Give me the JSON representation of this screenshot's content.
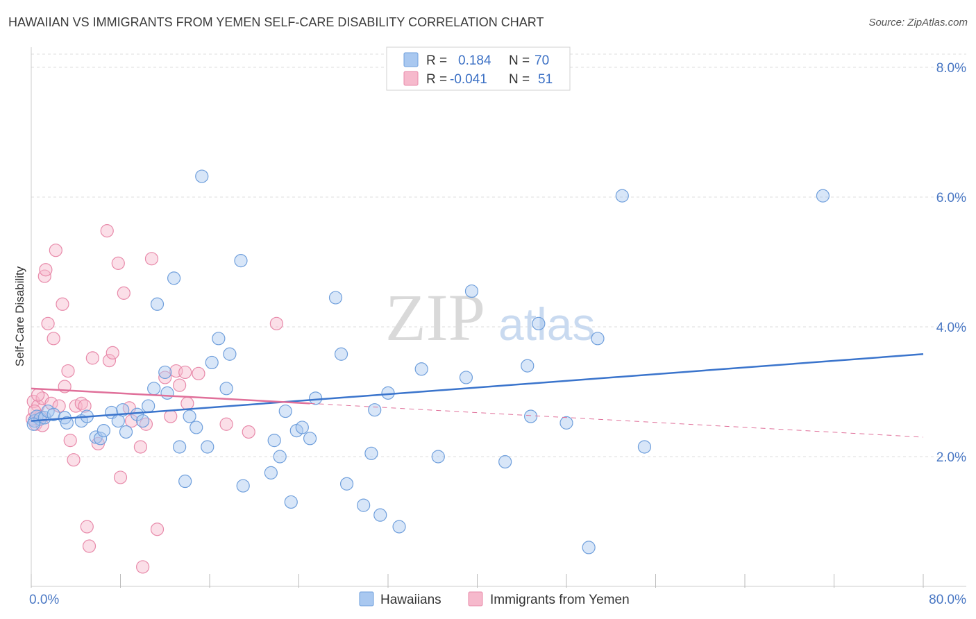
{
  "title": "HAWAIIAN VS IMMIGRANTS FROM YEMEN SELF-CARE DISABILITY CORRELATION CHART",
  "source": "Source: ZipAtlas.com",
  "watermark": {
    "zip": "ZIP",
    "atlas": "atlas"
  },
  "colors": {
    "blue_fill": "#a9c8f0",
    "blue_stroke": "#6f9fdc",
    "blue_line": "#3a74cc",
    "pink_fill": "#f6b9cc",
    "pink_stroke": "#e88aaa",
    "pink_line": "#e0709a",
    "grid": "#dcdcdc",
    "tick_text": "#4a78c4"
  },
  "legend": {
    "rows": [
      {
        "r_label": "R =",
        "r_value": "0.184",
        "n_label": "N =",
        "n_value": "70"
      },
      {
        "r_label": "R =",
        "r_value": "-0.041",
        "n_label": "N =",
        "n_value": "51"
      }
    ]
  },
  "chart_data": {
    "type": "scatter",
    "title": "HAWAIIAN VS IMMIGRANTS FROM YEMEN SELF-CARE DISABILITY CORRELATION CHART",
    "xlabel": "",
    "ylabel": "Self-Care Disability",
    "xlim": [
      0,
      80
    ],
    "ylim": [
      0,
      8.2
    ],
    "x_tick_labels": [
      "0.0%",
      "80.0%"
    ],
    "y_ticks": [
      2,
      4,
      6,
      8
    ],
    "y_tick_labels": [
      "2.0%",
      "4.0%",
      "6.0%",
      "8.0%"
    ],
    "grid": true,
    "legend_position": "top-center",
    "series": [
      {
        "name": "Hawaiians",
        "color": "#a9c8f0",
        "points": [
          [
            0.3,
            2.55
          ],
          [
            0.5,
            2.62
          ],
          [
            0.8,
            2.58
          ],
          [
            1.2,
            2.6
          ],
          [
            1.5,
            2.7
          ],
          [
            2.0,
            2.65
          ],
          [
            3.0,
            2.6
          ],
          [
            3.2,
            2.52
          ],
          [
            4.5,
            2.55
          ],
          [
            5.0,
            2.62
          ],
          [
            5.8,
            2.3
          ],
          [
            6.2,
            2.28
          ],
          [
            6.5,
            2.4
          ],
          [
            7.2,
            2.68
          ],
          [
            7.8,
            2.55
          ],
          [
            8.2,
            2.72
          ],
          [
            8.5,
            2.38
          ],
          [
            9.5,
            2.65
          ],
          [
            10.0,
            2.55
          ],
          [
            10.5,
            2.78
          ],
          [
            11.0,
            3.05
          ],
          [
            11.3,
            4.35
          ],
          [
            12.0,
            3.3
          ],
          [
            12.2,
            2.98
          ],
          [
            12.8,
            4.75
          ],
          [
            13.3,
            2.15
          ],
          [
            13.8,
            1.62
          ],
          [
            14.2,
            2.62
          ],
          [
            14.8,
            2.45
          ],
          [
            15.3,
            6.32
          ],
          [
            15.8,
            2.15
          ],
          [
            16.2,
            3.45
          ],
          [
            16.8,
            3.82
          ],
          [
            17.5,
            3.05
          ],
          [
            17.8,
            3.58
          ],
          [
            18.8,
            5.02
          ],
          [
            19.0,
            1.55
          ],
          [
            21.5,
            1.75
          ],
          [
            21.8,
            2.25
          ],
          [
            22.3,
            2.0
          ],
          [
            22.8,
            2.7
          ],
          [
            23.3,
            1.3
          ],
          [
            23.8,
            2.4
          ],
          [
            24.3,
            2.45
          ],
          [
            25.0,
            2.28
          ],
          [
            25.5,
            2.9
          ],
          [
            27.3,
            4.45
          ],
          [
            27.8,
            3.58
          ],
          [
            28.3,
            1.58
          ],
          [
            29.8,
            1.25
          ],
          [
            30.5,
            2.05
          ],
          [
            30.8,
            2.72
          ],
          [
            31.3,
            1.1
          ],
          [
            32.0,
            2.98
          ],
          [
            33.0,
            0.92
          ],
          [
            35.0,
            3.35
          ],
          [
            36.5,
            2.0
          ],
          [
            39.0,
            3.22
          ],
          [
            39.5,
            4.55
          ],
          [
            42.5,
            1.92
          ],
          [
            44.5,
            3.4
          ],
          [
            44.8,
            2.62
          ],
          [
            45.5,
            4.05
          ],
          [
            48.0,
            2.52
          ],
          [
            50.0,
            0.6
          ],
          [
            50.8,
            3.82
          ],
          [
            53.0,
            6.02
          ],
          [
            55.0,
            2.15
          ],
          [
            71.0,
            6.02
          ],
          [
            0.2,
            2.5
          ]
        ]
      },
      {
        "name": "Immigrants from Yemen",
        "color": "#f6b9cc",
        "points": [
          [
            0.2,
            2.85
          ],
          [
            0.4,
            2.5
          ],
          [
            0.6,
            2.78
          ],
          [
            0.8,
            2.62
          ],
          [
            1.0,
            2.9
          ],
          [
            1.2,
            4.78
          ],
          [
            1.3,
            4.88
          ],
          [
            1.5,
            4.05
          ],
          [
            1.8,
            2.82
          ],
          [
            2.0,
            3.82
          ],
          [
            2.2,
            5.18
          ],
          [
            2.5,
            2.78
          ],
          [
            2.8,
            4.35
          ],
          [
            3.0,
            3.08
          ],
          [
            3.3,
            3.32
          ],
          [
            3.5,
            2.25
          ],
          [
            3.8,
            1.95
          ],
          [
            4.0,
            2.78
          ],
          [
            4.5,
            2.82
          ],
          [
            4.8,
            2.78
          ],
          [
            5.0,
            0.92
          ],
          [
            5.2,
            0.62
          ],
          [
            5.5,
            3.52
          ],
          [
            6.0,
            2.2
          ],
          [
            6.8,
            5.48
          ],
          [
            7.0,
            3.48
          ],
          [
            7.3,
            3.6
          ],
          [
            7.8,
            4.98
          ],
          [
            8.0,
            1.68
          ],
          [
            8.3,
            4.52
          ],
          [
            8.8,
            2.75
          ],
          [
            9.0,
            2.55
          ],
          [
            9.8,
            2.15
          ],
          [
            10.0,
            0.3
          ],
          [
            10.3,
            2.5
          ],
          [
            10.8,
            5.05
          ],
          [
            11.3,
            0.88
          ],
          [
            12.0,
            3.22
          ],
          [
            12.5,
            2.62
          ],
          [
            13.0,
            3.32
          ],
          [
            13.3,
            3.1
          ],
          [
            13.8,
            3.3
          ],
          [
            14.0,
            2.82
          ],
          [
            15.0,
            3.28
          ],
          [
            17.5,
            2.5
          ],
          [
            19.5,
            2.38
          ],
          [
            22.0,
            4.05
          ],
          [
            0.1,
            2.58
          ],
          [
            0.3,
            2.7
          ],
          [
            0.6,
            2.95
          ],
          [
            1.0,
            2.48
          ]
        ]
      }
    ],
    "trend_lines": [
      {
        "series": "Hawaiians",
        "x": [
          0,
          80
        ],
        "y": [
          2.55,
          3.58
        ],
        "style": "solid"
      },
      {
        "series": "Immigrants from Yemen",
        "x": [
          0,
          25
        ],
        "y": [
          3.05,
          2.82
        ],
        "style": "solid"
      },
      {
        "series": "Immigrants from Yemen",
        "x": [
          25,
          80
        ],
        "y": [
          2.82,
          2.3
        ],
        "style": "dashed"
      }
    ]
  },
  "bottom_legend": [
    {
      "label": "Hawaiians"
    },
    {
      "label": "Immigrants from Yemen"
    }
  ]
}
